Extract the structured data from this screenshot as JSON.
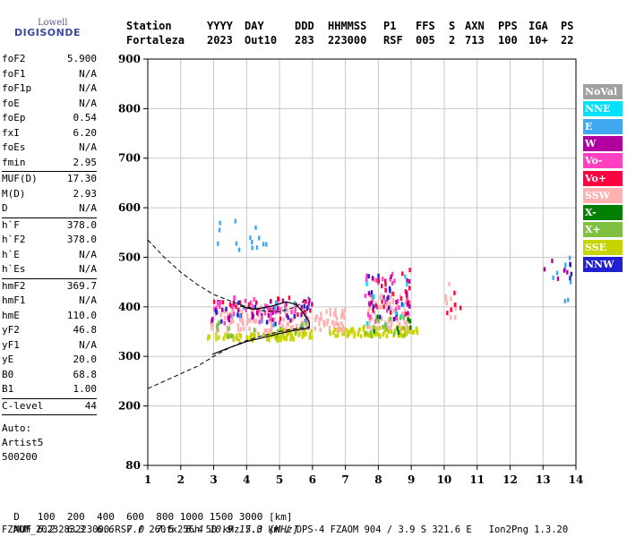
{
  "logo": {
    "top": "Lowell",
    "bottom": "DIGISONDE"
  },
  "header": {
    "labels": [
      "Station",
      "YYYY",
      "DAY",
      "DDD",
      "HHMMSS",
      "P1",
      "FFS",
      "S",
      "AXN",
      "PPS",
      "IGA",
      "PS"
    ],
    "values": [
      "Fortaleza",
      "2023",
      "Out10",
      "283",
      "223000",
      "RSF",
      "005",
      "2",
      "713",
      "100",
      "10+",
      "22"
    ]
  },
  "params": {
    "group1": [
      {
        "k": "foF2",
        "v": "5.900"
      },
      {
        "k": "foF1",
        "v": "N/A"
      },
      {
        "k": "foF1p",
        "v": "N/A"
      },
      {
        "k": "foE",
        "v": "N/A"
      },
      {
        "k": "foEp",
        "v": "0.54"
      },
      {
        "k": "fxI",
        "v": "6.20"
      },
      {
        "k": "foEs",
        "v": "N/A"
      },
      {
        "k": "fmin",
        "v": "2.95"
      }
    ],
    "group2": [
      {
        "k": "MUF(D)",
        "v": "17.30"
      },
      {
        "k": "M(D)",
        "v": "2.93"
      },
      {
        "k": "D",
        "v": "N/A"
      }
    ],
    "group3": [
      {
        "k": "h`F",
        "v": "378.0"
      },
      {
        "k": "h`F2",
        "v": "378.0"
      },
      {
        "k": "h`E",
        "v": "N/A"
      },
      {
        "k": "h`Es",
        "v": "N/A"
      }
    ],
    "group4": [
      {
        "k": "hmF2",
        "v": "369.7"
      },
      {
        "k": "hmF1",
        "v": "N/A"
      },
      {
        "k": "hmE",
        "v": "110.0"
      },
      {
        "k": "yF2",
        "v": "46.8"
      },
      {
        "k": "yF1",
        "v": "N/A"
      },
      {
        "k": "yE",
        "v": "20.0"
      },
      {
        "k": "B0",
        "v": "68.8"
      },
      {
        "k": "B1",
        "v": "1.00"
      }
    ],
    "group5": [
      {
        "k": "C-level",
        "v": "44"
      }
    ]
  },
  "auto": [
    "Auto:",
    "Artist5",
    "500200"
  ],
  "legend": [
    {
      "label": "NoVal",
      "color": "#a0a0a0"
    },
    {
      "label": "NNE",
      "color": "#00e0ff"
    },
    {
      "label": "E",
      "color": "#40a8f0"
    },
    {
      "label": "W",
      "color": "#b000a0"
    },
    {
      "label": "Vo-",
      "color": "#ff40c0"
    },
    {
      "label": "Vo+",
      "color": "#ff0040"
    },
    {
      "label": "SSW",
      "color": "#ffb0b0"
    },
    {
      "label": "X-",
      "color": "#008000"
    },
    {
      "label": "X+",
      "color": "#80c040"
    },
    {
      "label": "SSE",
      "color": "#c8d400"
    },
    {
      "label": "NNW",
      "color": "#2020d0"
    }
  ],
  "footer": {
    "row1_label": "D",
    "row1_values": "100  200  400  600  800 1000 1500 3000 [km]",
    "row2_label": "MUF",
    "row2_values": "6.2  6.3  6.6  7.0  7.6  8.4 10.9 17.3 [MHz]",
    "row3": "FZAOM_2023283223000.RSF / 260fx256h 50 kHz 5.0 km / DPS-4 FZAOM 904 / 3.9 S 321.6 E   Ion2Png 1.3.20"
  },
  "chart_data": {
    "type": "scatter",
    "x_ticks": [
      "1",
      "2",
      "3",
      "4",
      "5",
      "6",
      "7",
      "8",
      "9",
      "10",
      "11",
      "12",
      "13",
      "14"
    ],
    "y_ticks": [
      "80",
      "200",
      "300",
      "400",
      "500",
      "600",
      "700",
      "800",
      "900"
    ],
    "xlim": [
      1,
      14
    ],
    "ylim": [
      80,
      900
    ],
    "xlabel": "",
    "ylabel": "",
    "grid": true,
    "profile_solid": [
      [
        2.95,
        304
      ],
      [
        3.5,
        318
      ],
      [
        4,
        330
      ],
      [
        4.5,
        338
      ],
      [
        5,
        346
      ],
      [
        5.4,
        352
      ],
      [
        5.9,
        357
      ],
      [
        5.9,
        370
      ],
      [
        5.7,
        390
      ],
      [
        5.5,
        405
      ],
      [
        5.2,
        410
      ],
      [
        4.8,
        402
      ],
      [
        4.5,
        398
      ],
      [
        4.2,
        395
      ],
      [
        4.0,
        398
      ],
      [
        3.8,
        402
      ]
    ],
    "profile_dashed_upper": [
      [
        1,
        535
      ],
      [
        1.5,
        500
      ],
      [
        2,
        470
      ],
      [
        2.5,
        445
      ],
      [
        3,
        425
      ],
      [
        3.5,
        412
      ],
      [
        4,
        400
      ],
      [
        4.5,
        392
      ],
      [
        5,
        390
      ],
      [
        5.5,
        400
      ],
      [
        5.9,
        420
      ]
    ],
    "profile_dashed_lower": [
      [
        1,
        235
      ],
      [
        1.5,
        250
      ],
      [
        2,
        265
      ],
      [
        2.5,
        280
      ],
      [
        3,
        300
      ],
      [
        3.5,
        318
      ],
      [
        4,
        332
      ],
      [
        4.5,
        342
      ],
      [
        5,
        350
      ],
      [
        5.5,
        356
      ],
      [
        5.9,
        360
      ]
    ],
    "clusters": [
      {
        "f": [
          2.8,
          6.0
        ],
        "h": [
          332,
          345
        ],
        "color": "#c8d400",
        "n": 70
      },
      {
        "f": [
          5.0,
          6.0
        ],
        "h": [
          340,
          355
        ],
        "color": "#c8d400",
        "n": 25
      },
      {
        "f": [
          6.5,
          7.5
        ],
        "h": [
          340,
          355
        ],
        "color": "#c8d400",
        "n": 30
      },
      {
        "f": [
          7.5,
          9.2
        ],
        "h": [
          340,
          360
        ],
        "color": "#c8d400",
        "n": 60
      },
      {
        "f": [
          2.9,
          6.0
        ],
        "h": [
          350,
          400
        ],
        "color": "#ffb0b0",
        "n": 110
      },
      {
        "f": [
          6.0,
          7.0
        ],
        "h": [
          350,
          395
        ],
        "color": "#ffb0b0",
        "n": 45
      },
      {
        "f": [
          7.7,
          9.0
        ],
        "h": [
          355,
          430
        ],
        "color": "#ffb0b0",
        "n": 70
      },
      {
        "f": [
          2.9,
          6.0
        ],
        "h": [
          375,
          420
        ],
        "color": "#ff0040",
        "n": 25
      },
      {
        "f": [
          2.9,
          6.0
        ],
        "h": [
          370,
          415
        ],
        "color": "#b000a0",
        "n": 30
      },
      {
        "f": [
          3.0,
          6.0
        ],
        "h": [
          365,
          420
        ],
        "color": "#ff40c0",
        "n": 40
      },
      {
        "f": [
          7.6,
          9.0
        ],
        "h": [
          370,
          470
        ],
        "color": "#ff40c0",
        "n": 30
      },
      {
        "f": [
          7.6,
          9.0
        ],
        "h": [
          380,
          480
        ],
        "color": "#ff0040",
        "n": 20
      },
      {
        "f": [
          7.6,
          9.0
        ],
        "h": [
          380,
          470
        ],
        "color": "#b000a0",
        "n": 15
      },
      {
        "f": [
          3.0,
          6.0
        ],
        "h": [
          365,
          410
        ],
        "color": "#2020d0",
        "n": 15
      },
      {
        "f": [
          7.6,
          9.0
        ],
        "h": [
          375,
          470
        ],
        "color": "#2020d0",
        "n": 12
      },
      {
        "f": [
          3.0,
          6.0
        ],
        "h": [
          360,
          410
        ],
        "color": "#40a8f0",
        "n": 12
      },
      {
        "f": [
          7.6,
          9.0
        ],
        "h": [
          360,
          470
        ],
        "color": "#00e0ff",
        "n": 10
      },
      {
        "f": [
          3.0,
          6.0
        ],
        "h": [
          340,
          370
        ],
        "color": "#80c040",
        "n": 15
      },
      {
        "f": [
          7.6,
          9.0
        ],
        "h": [
          340,
          380
        ],
        "color": "#80c040",
        "n": 15
      },
      {
        "f": [
          7.6,
          9.0
        ],
        "h": [
          345,
          380
        ],
        "color": "#008000",
        "n": 8
      },
      {
        "f": [
          10.0,
          10.5
        ],
        "h": [
          370,
          450
        ],
        "color": "#ffb0b0",
        "n": 10
      },
      {
        "f": [
          10.0,
          10.5
        ],
        "h": [
          380,
          430
        ],
        "color": "#ff0040",
        "n": 5
      },
      {
        "f": [
          3.0,
          4.6
        ],
        "h": [
          515,
          580
        ],
        "color": "#40a8f0",
        "n": 14
      },
      {
        "f": [
          12.9,
          14.0
        ],
        "h": [
          410,
          510
        ],
        "color": "#40a8f0",
        "n": 8
      },
      {
        "f": [
          12.9,
          14.0
        ],
        "h": [
          420,
          500
        ],
        "color": "#b000a0",
        "n": 5
      },
      {
        "f": [
          13.2,
          14.0
        ],
        "h": [
          440,
          500
        ],
        "color": "#2020d0",
        "n": 4
      }
    ]
  }
}
